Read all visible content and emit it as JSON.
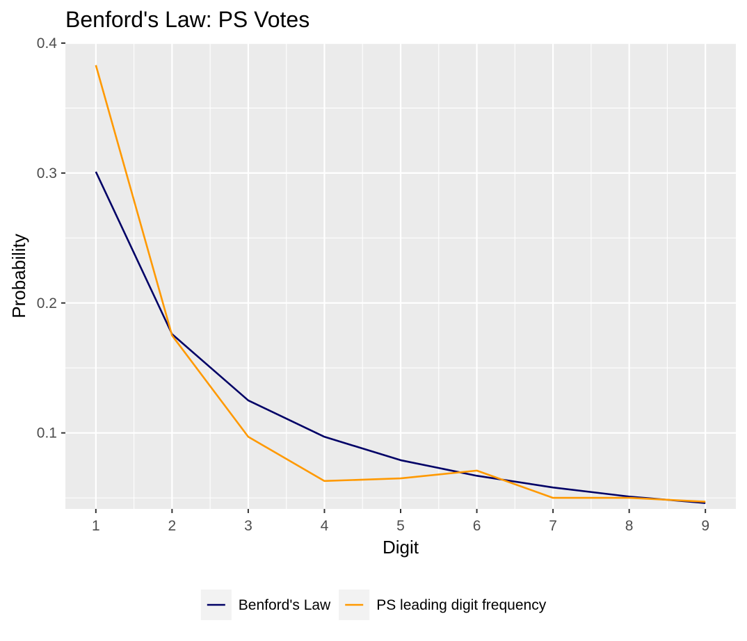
{
  "chart_data": {
    "type": "line",
    "title": "Benford's Law: PS  Votes",
    "xlabel": "Digit",
    "ylabel": "Probability",
    "x": [
      1,
      2,
      3,
      4,
      5,
      6,
      7,
      8,
      9
    ],
    "xlim": [
      0.6,
      9.4
    ],
    "ylim": [
      0.0415,
      0.4
    ],
    "y_ticks": [
      0.1,
      0.2,
      0.3,
      0.4
    ],
    "y_tick_labels": [
      "0.1",
      "0.2",
      "0.3",
      "0.4"
    ],
    "x_ticks": [
      1,
      2,
      3,
      4,
      5,
      6,
      7,
      8,
      9
    ],
    "x_tick_labels": [
      "1",
      "2",
      "3",
      "4",
      "5",
      "6",
      "7",
      "8",
      "9"
    ],
    "grid": true,
    "legend_position": "bottom",
    "series": [
      {
        "name": "Benford's Law",
        "color": "#000066",
        "values": [
          0.301,
          0.176,
          0.125,
          0.097,
          0.079,
          0.067,
          0.058,
          0.051,
          0.046
        ]
      },
      {
        "name": "PS  leading digit frequency",
        "color": "#ff9900",
        "values": [
          0.383,
          0.175,
          0.097,
          0.063,
          0.065,
          0.071,
          0.05,
          0.05,
          0.047
        ]
      }
    ]
  }
}
